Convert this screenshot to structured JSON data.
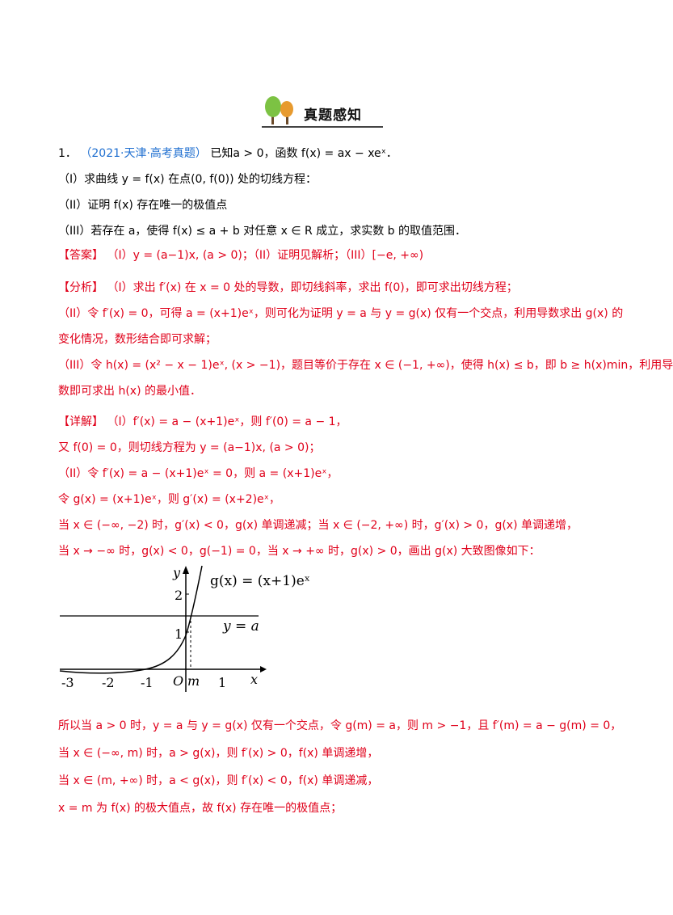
{
  "header": {
    "title": "真题感知",
    "icon": "tree-icon"
  },
  "problem": {
    "number": "1．",
    "source": "（2021·天津·高考真题）",
    "stem": "已知a > 0，函数 f(x) = ax − xeˣ．",
    "part1": "（I）求曲线 y = f(x) 在点(0, f(0)) 处的切线方程：",
    "part2": "（II）证明 f(x) 存在唯一的极值点",
    "part3": "（III）若存在 a，使得 f(x) ≤ a + b 对任意 x ∈ R 成立，求实数 b 的取值范围．"
  },
  "answer": {
    "label": "【答案】",
    "text": "（I）y = (a−1)x, (a > 0)；（II）证明见解析；（III）[−e, +∞)"
  },
  "analysis": {
    "label": "【分析】",
    "line1": "（I）求出 f′(x) 在 x = 0 处的导数，即切线斜率，求出 f(0)，即可求出切线方程；",
    "line2": "（II）令 f′(x) = 0，可得 a = (x+1)eˣ，则可化为证明 y = a 与 y = g(x) 仅有一个交点，利用导数求出 g(x) 的",
    "line3": "变化情况，数形结合即可求解；",
    "line4": "（III）令 h(x) = (x² − x − 1)eˣ, (x > −1)，题目等价于存在 x ∈ (−1, +∞)，使得 h(x) ≤ b，即 b ≥ h(x)min，利用导",
    "line5": "数即可求出 h(x) 的最小值．"
  },
  "detail": {
    "label": "【详解】",
    "line1": "（I）f′(x) = a − (x+1)eˣ，则 f′(0) = a − 1，",
    "line2": "又 f(0) = 0，则切线方程为 y = (a−1)x, (a > 0)；",
    "line3": "（II）令 f′(x) = a − (x+1)eˣ = 0，则 a = (x+1)eˣ，",
    "line4": "令 g(x) = (x+1)eˣ，则 g′(x) = (x+2)eˣ，",
    "line5": "当 x ∈ (−∞, −2) 时，g′(x) < 0，g(x) 单调递减；当 x ∈ (−2, +∞) 时，g′(x) > 0，g(x) 单调递增，",
    "line6": "当 x → −∞ 时，g(x) < 0，g(−1) = 0，当 x → +∞ 时，g(x) > 0，画出 g(x) 大致图像如下：",
    "line7": "所以当 a > 0 时，y = a 与 y = g(x) 仅有一个交点，令 g(m) = a，则 m > −1，且 f′(m) = a − g(m) = 0，",
    "line8": "当 x ∈ (−∞, m) 时，a > g(x)，则 f′(x) > 0，f(x) 单调递增，",
    "line9": "当 x ∈ (m, +∞) 时，a < g(x)，则 f′(x) < 0，f(x) 单调递减，",
    "line10": "x = m 为 f(x) 的极大值点，故 f(x) 存在唯一的极值点；"
  },
  "graph": {
    "curve_label": "g(x) = (x+1)eˣ",
    "line_label": "y = a",
    "y_axis": "y",
    "x_axis": "x",
    "origin": "O",
    "m_label": "m",
    "y_tick_2": "2",
    "y_tick_1": "1",
    "x_ticks": [
      "-3",
      "-2",
      "-1",
      "1"
    ]
  }
}
